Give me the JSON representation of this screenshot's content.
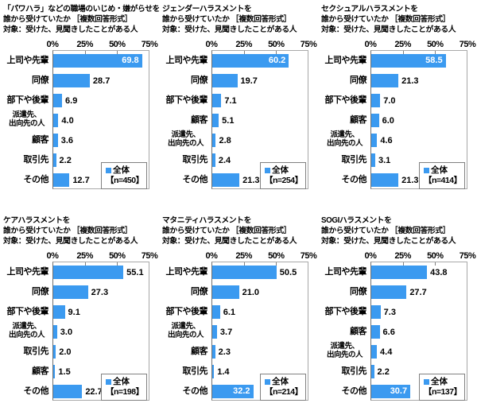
{
  "colors": {
    "bar": "#3b9af0",
    "value_inside_text": "#ffffff",
    "text": "#000000",
    "plot_border": "#a8a8a8",
    "axis_line": "#707070",
    "legend_border": "#808080",
    "background": "#ffffff"
  },
  "chart_data": [
    {
      "id": "power-harassment",
      "type": "bar",
      "title_lines": [
        "「パワハラ」などの職場のいじめ・嫌がらせを",
        "誰から受けていたか ［複数回答形式］",
        "対象：受けた、見聞きしたことがある人"
      ],
      "categories": [
        "上司や先輩",
        "同僚",
        "部下や後輩",
        "派遣先、\n出向先の人",
        "顧客",
        "取引先",
        "その他"
      ],
      "values": [
        69.8,
        28.7,
        6.9,
        4.0,
        3.6,
        2.2,
        12.7
      ],
      "value_labels": [
        "69.8",
        "28.7",
        "6.9",
        "4.0",
        "3.6",
        "2.2",
        "12.7"
      ],
      "label_inside": [
        true,
        false,
        false,
        false,
        false,
        false,
        false
      ],
      "legend": {
        "label": "全体",
        "n": "【n=450】"
      },
      "xlim": [
        0,
        75
      ],
      "x_ticks": [
        "0%",
        "25%",
        "50%",
        "75%"
      ],
      "x_tick_positions": [
        0,
        33.333,
        66.667,
        100
      ]
    },
    {
      "id": "gender-harassment",
      "type": "bar",
      "title_lines": [
        "ジェンダーハラスメントを",
        "誰から受けていたか ［複数回答形式］",
        "対象：受けた、見聞きしたことがある人"
      ],
      "categories": [
        "上司や先輩",
        "同僚",
        "部下や後輩",
        "顧客",
        "派遣先、\n出向先の人",
        "取引先",
        "その他"
      ],
      "values": [
        60.2,
        19.7,
        7.1,
        5.1,
        2.8,
        2.4,
        21.3
      ],
      "value_labels": [
        "60.2",
        "19.7",
        "7.1",
        "5.1",
        "2.8",
        "2.4",
        "21.3"
      ],
      "label_inside": [
        true,
        false,
        false,
        false,
        false,
        false,
        false
      ],
      "legend": {
        "label": "全体",
        "n": "【n=254】"
      },
      "xlim": [
        0,
        75
      ],
      "x_ticks": [
        "0%",
        "25%",
        "50%",
        "75%"
      ],
      "x_tick_positions": [
        0,
        33.333,
        66.667,
        100
      ]
    },
    {
      "id": "sexual-harassment",
      "type": "bar",
      "title_lines": [
        "セクシュアルハラスメントを",
        "誰から受けていたか ［複数回答形式］",
        "対象：受けた、見聞きしたことがある人"
      ],
      "categories": [
        "上司や先輩",
        "同僚",
        "部下や後輩",
        "顧客",
        "派遣先、\n出向先の人",
        "取引先",
        "その他"
      ],
      "values": [
        58.5,
        21.3,
        7.0,
        6.0,
        4.6,
        3.1,
        21.3
      ],
      "value_labels": [
        "58.5",
        "21.3",
        "7.0",
        "6.0",
        "4.6",
        "3.1",
        "21.3"
      ],
      "label_inside": [
        true,
        false,
        false,
        false,
        false,
        false,
        false
      ],
      "legend": {
        "label": "全体",
        "n": "【n=414】"
      },
      "xlim": [
        0,
        75
      ],
      "x_ticks": [
        "0%",
        "25%",
        "50%",
        "75%"
      ],
      "x_tick_positions": [
        0,
        33.333,
        66.667,
        100
      ]
    },
    {
      "id": "care-harassment",
      "type": "bar",
      "title_lines": [
        "ケアハラスメントを",
        "誰から受けていたか ［複数回答形式］",
        "対象：受けた、見聞きしたことがある人"
      ],
      "categories": [
        "上司や先輩",
        "同僚",
        "部下や後輩",
        "派遣先、\n出向先の人",
        "取引先",
        "顧客",
        "その他"
      ],
      "values": [
        55.1,
        27.3,
        9.1,
        3.0,
        2.0,
        1.5,
        22.7
      ],
      "value_labels": [
        "55.1",
        "27.3",
        "9.1",
        "3.0",
        "2.0",
        "1.5",
        "22.7"
      ],
      "label_inside": [
        false,
        false,
        false,
        false,
        false,
        false,
        false
      ],
      "legend": {
        "label": "全体",
        "n": "【n=198】"
      },
      "xlim": [
        0,
        75
      ],
      "x_ticks": [
        "0%",
        "25%",
        "50%",
        "75%"
      ],
      "x_tick_positions": [
        0,
        33.333,
        66.667,
        100
      ]
    },
    {
      "id": "maternity-harassment",
      "type": "bar",
      "title_lines": [
        "マタニティハラスメントを",
        "誰から受けていたか ［複数回答形式］",
        "対象：受けた、見聞きしたことがある人"
      ],
      "categories": [
        "上司や先輩",
        "同僚",
        "部下や後輩",
        "派遣先、\n出向先の人",
        "顧客",
        "取引先",
        "その他"
      ],
      "values": [
        50.5,
        21.0,
        6.1,
        3.7,
        2.3,
        1.4,
        32.2
      ],
      "value_labels": [
        "50.5",
        "21.0",
        "6.1",
        "3.7",
        "2.3",
        "1.4",
        "32.2"
      ],
      "label_inside": [
        false,
        false,
        false,
        false,
        false,
        false,
        true
      ],
      "legend": {
        "label": "全体",
        "n": "【n=214】"
      },
      "xlim": [
        0,
        75
      ],
      "x_ticks": [
        "0%",
        "25%",
        "50%",
        "75%"
      ],
      "x_tick_positions": [
        0,
        33.333,
        66.667,
        100
      ]
    },
    {
      "id": "sogi-harassment",
      "type": "bar",
      "title_lines": [
        "SOGIハラスメントを",
        "誰から受けていたか ［複数回答形式］",
        "対象：受けた、見聞きしたことがある人"
      ],
      "categories": [
        "上司や先輩",
        "同僚",
        "部下や後輩",
        "顧客",
        "派遣先、\n出向先の人",
        "取引先",
        "その他"
      ],
      "values": [
        43.8,
        27.7,
        7.3,
        6.6,
        4.4,
        2.2,
        30.7
      ],
      "value_labels": [
        "43.8",
        "27.7",
        "7.3",
        "6.6",
        "4.4",
        "2.2",
        "30.7"
      ],
      "label_inside": [
        false,
        false,
        false,
        false,
        false,
        false,
        true
      ],
      "legend": {
        "label": "全体",
        "n": "【n=137】"
      },
      "xlim": [
        0,
        75
      ],
      "x_ticks": [
        "0%",
        "25%",
        "50%",
        "75%"
      ],
      "x_tick_positions": [
        0,
        33.333,
        66.667,
        100
      ]
    }
  ]
}
